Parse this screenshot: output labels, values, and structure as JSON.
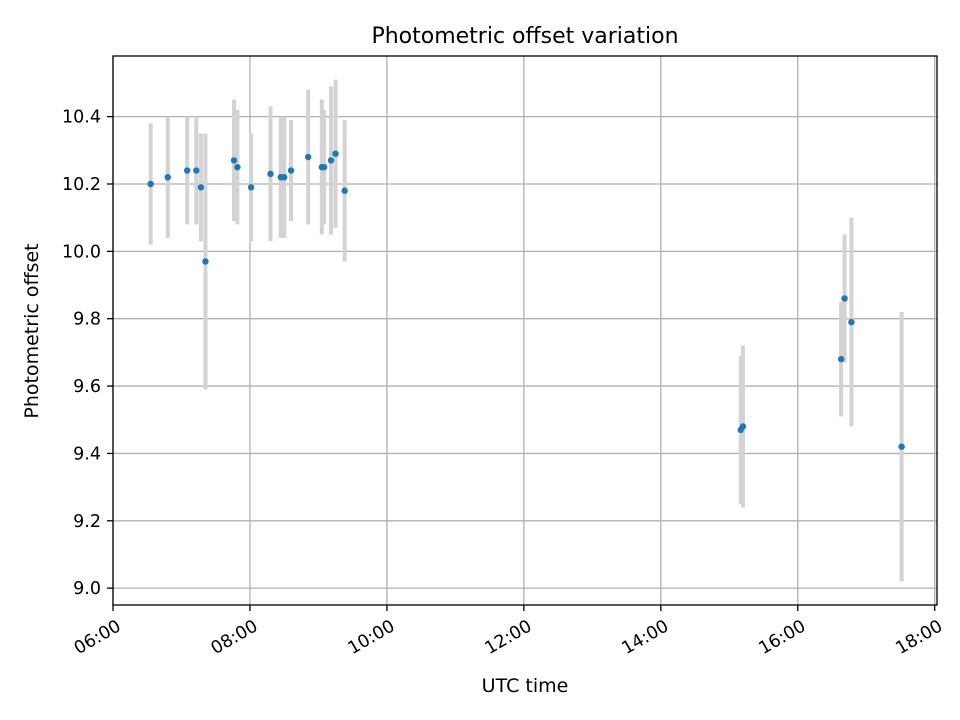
{
  "chart_data": {
    "type": "scatter",
    "title": "Photometric offset variation",
    "xlabel": "UTC time",
    "ylabel": "Photometric offset",
    "x_is_time": true,
    "xlim": [
      "06:00",
      "18:02"
    ],
    "ylim": [
      8.95,
      10.58
    ],
    "xticks": [
      "06:00",
      "08:00",
      "10:00",
      "12:00",
      "14:00",
      "16:00",
      "18:00"
    ],
    "yticks": [
      "9.0",
      "9.2",
      "9.4",
      "9.6",
      "9.8",
      "10.0",
      "10.2",
      "10.4"
    ],
    "grid": true,
    "colors": {
      "point": "#1f77b4",
      "errorbar": "#d3d3d3",
      "grid": "#b0b0b0"
    },
    "series": [
      {
        "points": [
          {
            "x": "06:33",
            "y": 10.2,
            "yerr": 0.18
          },
          {
            "x": "06:48",
            "y": 10.22,
            "yerr": 0.18
          },
          {
            "x": "07:05",
            "y": 10.24,
            "yerr": 0.16
          },
          {
            "x": "07:13",
            "y": 10.24,
            "yerr": 0.16
          },
          {
            "x": "07:17",
            "y": 10.19,
            "yerr": 0.16
          },
          {
            "x": "07:21",
            "y": 9.97,
            "yerr": 0.38
          },
          {
            "x": "07:46",
            "y": 10.27,
            "yerr": 0.18
          },
          {
            "x": "07:49",
            "y": 10.25,
            "yerr": 0.17
          },
          {
            "x": "08:01",
            "y": 10.19,
            "yerr": 0.16
          },
          {
            "x": "08:18",
            "y": 10.23,
            "yerr": 0.2
          },
          {
            "x": "08:27",
            "y": 10.22,
            "yerr": 0.18
          },
          {
            "x": "08:30",
            "y": 10.22,
            "yerr": 0.18
          },
          {
            "x": "08:36",
            "y": 10.24,
            "yerr": 0.15
          },
          {
            "x": "08:51",
            "y": 10.28,
            "yerr": 0.2
          },
          {
            "x": "09:03",
            "y": 10.25,
            "yerr": 0.2
          },
          {
            "x": "09:05",
            "y": 10.25,
            "yerr": 0.17
          },
          {
            "x": "09:11",
            "y": 10.27,
            "yerr": 0.22
          },
          {
            "x": "09:15",
            "y": 10.29,
            "yerr": 0.22
          },
          {
            "x": "09:23",
            "y": 10.18,
            "yerr": 0.21
          },
          {
            "x": "15:10",
            "y": 9.47,
            "yerr": 0.22
          },
          {
            "x": "15:12",
            "y": 9.48,
            "yerr": 0.24
          },
          {
            "x": "16:38",
            "y": 9.68,
            "yerr": 0.17
          },
          {
            "x": "16:41",
            "y": 9.86,
            "yerr": 0.19
          },
          {
            "x": "16:47",
            "y": 9.79,
            "yerr": 0.31
          },
          {
            "x": "17:31",
            "y": 9.42,
            "yerr": 0.4
          }
        ]
      }
    ]
  }
}
